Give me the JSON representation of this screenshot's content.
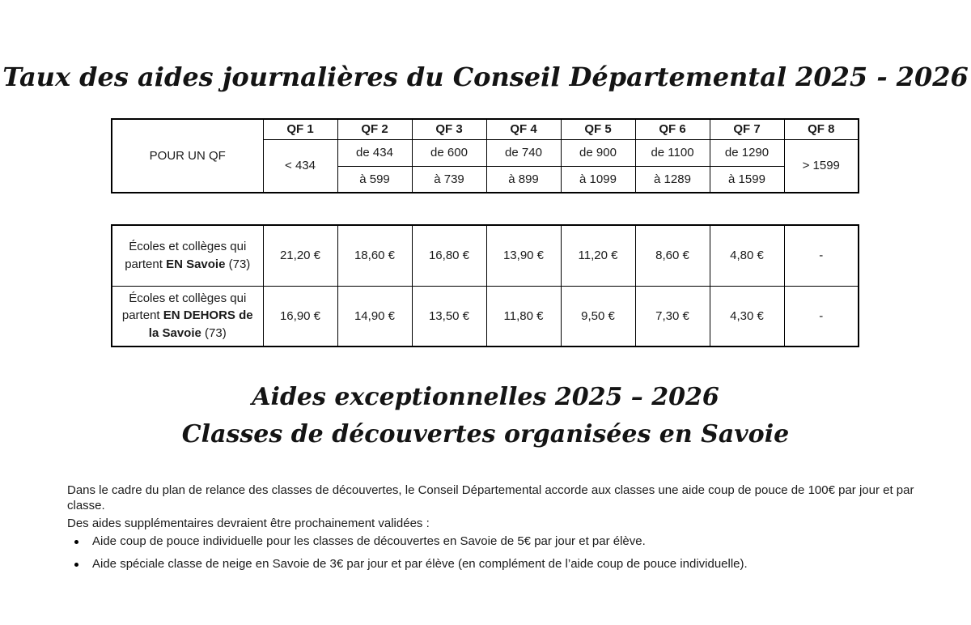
{
  "titles": {
    "main": "Taux des aides journalières du Conseil Départemental 2025 - 2026",
    "second_line1": "Aides exceptionnelles 2025 – 2026",
    "second_line2": "Classes de découvertes organisées en Savoie"
  },
  "qf_table": {
    "row_header": "POUR UN QF",
    "headers": [
      "QF 1",
      "QF 2",
      "QF 3",
      "QF 4",
      "QF 5",
      "QF 6",
      "QF 7",
      "QF 8"
    ],
    "qf1_range": "< 434",
    "from_values": [
      "de 434",
      "de 600",
      "de 740",
      "de 900",
      "de 1100",
      "de 1290"
    ],
    "to_values": [
      "à 599",
      "à 739",
      "à 899",
      "à 1099",
      "à 1289",
      "à 1599"
    ],
    "qf8_range": "> 1599"
  },
  "rates_table": {
    "rows": [
      {
        "label_prefix": "Écoles et collèges qui partent ",
        "label_bold": "EN Savoie",
        "label_suffix": " (73)",
        "values": [
          "21,20 €",
          "18,60 €",
          "16,80 €",
          "13,90 €",
          "11,20 €",
          "8,60 €",
          "4,80 €",
          "-"
        ]
      },
      {
        "label_prefix": "Écoles et collèges qui partent ",
        "label_bold": "EN DEHORS de la Savoie",
        "label_suffix": " (73)",
        "values": [
          "16,90 €",
          "14,90 €",
          "13,50 €",
          "11,80 €",
          "9,50 €",
          "7,30 €",
          "4,30 €",
          "-"
        ]
      }
    ]
  },
  "body": {
    "paragraph": "Dans le cadre du plan de relance des classes de découvertes, le Conseil Départemental accorde aux classes une aide coup de pouce de 100€ par jour et par classe.",
    "intro": "Des aides supplémentaires devraient être prochainement validées :",
    "bullets": [
      "Aide coup de pouce individuelle pour les classes de découvertes en Savoie de 5€ par jour et par élève.",
      "Aide spéciale classe de neige en Savoie de 3€ par jour et par élève (en complément de l’aide coup de pouce individuelle)."
    ]
  }
}
